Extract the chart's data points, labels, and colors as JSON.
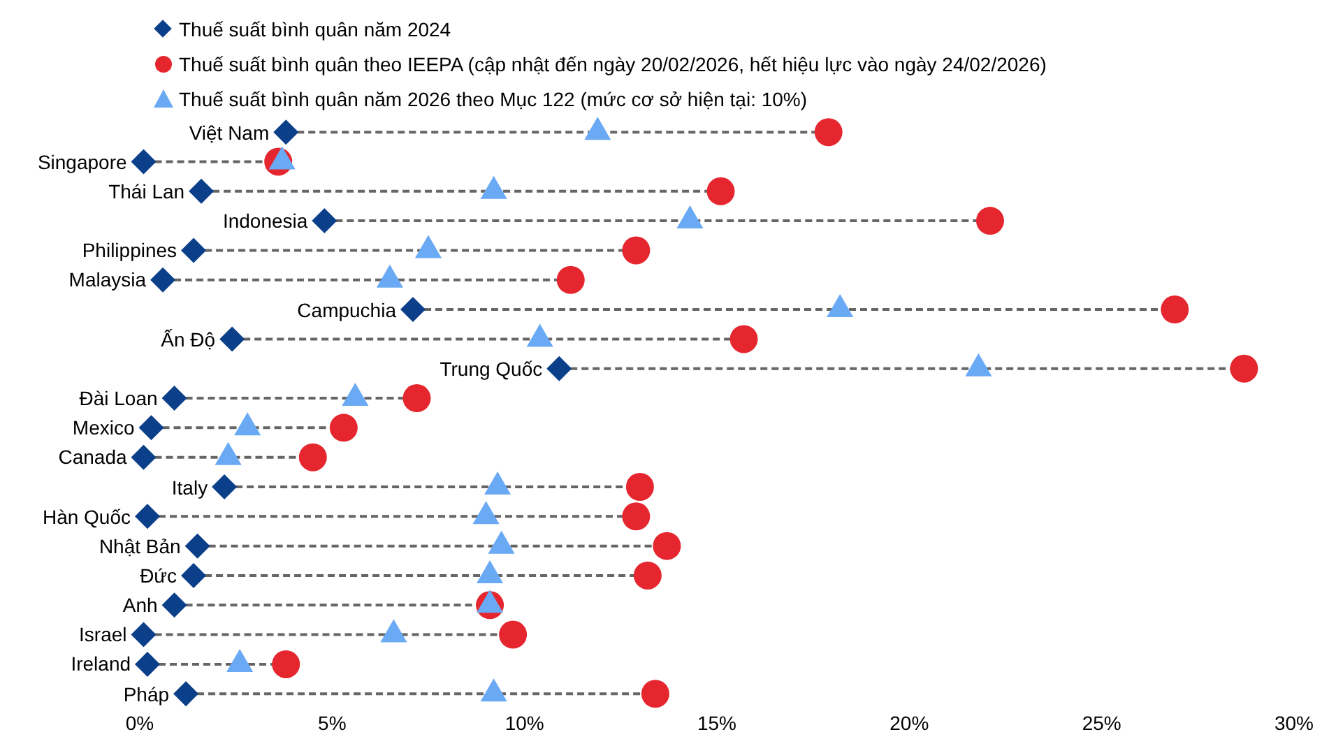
{
  "chart_data": {
    "type": "scatter",
    "orientation": "horizontal",
    "legend": "top left",
    "grid": false,
    "categories": [
      "Việt Nam",
      "Singapore",
      "Thái Lan",
      "Indonesia",
      "Philippines",
      "Malaysia",
      "Campuchia",
      "Ấn Độ",
      "Trung Quốc",
      "Đài Loan",
      "Mexico",
      "Canada",
      "Italy",
      "Hàn Quốc",
      "Nhật Bản",
      "Đức",
      "Anh",
      "Israel",
      "Ireland",
      "Pháp"
    ],
    "xlim": [
      0,
      30
    ],
    "xticks": [
      {
        "value": 0,
        "label": "0%"
      },
      {
        "value": 5,
        "label": "5%"
      },
      {
        "value": 10,
        "label": "10%"
      },
      {
        "value": 15,
        "label": "15%"
      },
      {
        "value": 20,
        "label": "20%"
      },
      {
        "value": 25,
        "label": "25%"
      },
      {
        "value": 30,
        "label": "30%"
      }
    ],
    "series": [
      {
        "name": "Thuế suất bình quân năm 2024",
        "color": "#0b3f8a",
        "marker": "diamond",
        "values": [
          3.8,
          0.1,
          1.6,
          4.8,
          1.4,
          0.6,
          7.1,
          2.4,
          10.9,
          0.9,
          0.3,
          0.1,
          2.2,
          0.2,
          1.5,
          1.4,
          0.9,
          0.1,
          0.2,
          1.2
        ]
      },
      {
        "name": "Thuế suất bình quân theo IEEPA (cập nhật đến ngày 20/02/2026, hết hiệu lực vào ngày 24/02/2026)",
        "color": "#e5262e",
        "marker": "circle",
        "values": [
          17.9,
          3.6,
          15.1,
          22.1,
          12.9,
          11.2,
          26.9,
          15.7,
          28.7,
          7.2,
          5.3,
          4.5,
          13.0,
          12.9,
          13.7,
          13.2,
          9.1,
          9.7,
          3.8,
          13.4
        ]
      },
      {
        "name": "Thuế suất bình quân năm 2026 theo Mục 122 (mức cơ sở hiện tại: 10%)",
        "color": "#6aa9f4",
        "marker": "triangle",
        "values": [
          11.9,
          3.7,
          9.2,
          14.3,
          7.5,
          6.5,
          18.2,
          10.4,
          21.8,
          5.6,
          2.8,
          2.3,
          9.3,
          9.0,
          9.4,
          9.1,
          9.1,
          6.6,
          2.6,
          9.2
        ]
      }
    ]
  }
}
